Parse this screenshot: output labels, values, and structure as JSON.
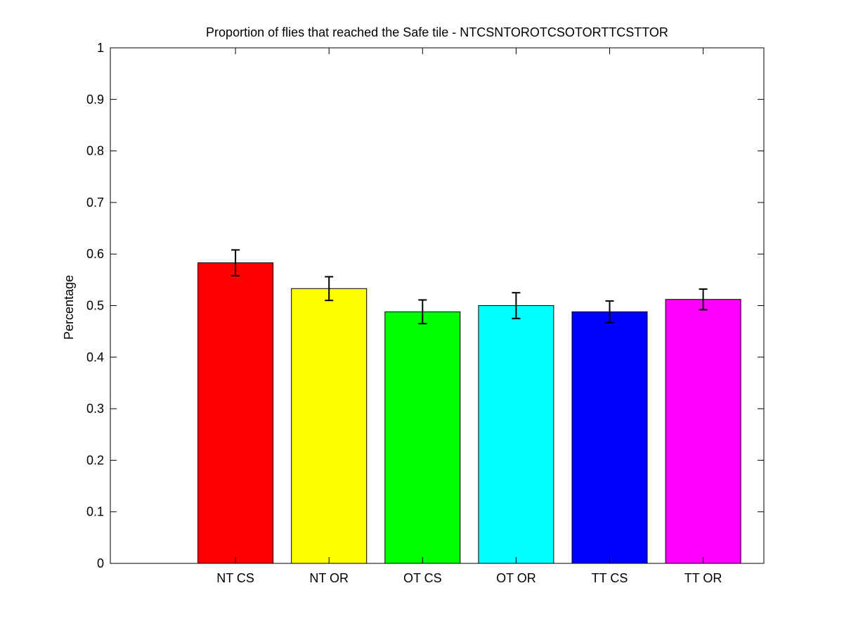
{
  "chart_data": {
    "type": "bar",
    "title": "Proportion of flies that reached the Safe tile - NTCSNTOROTCSOTORTTCSTTOR",
    "xlabel": "",
    "ylabel": "Percentage",
    "ylim": [
      0,
      1
    ],
    "yticks": [
      "0",
      "0.1",
      "0.2",
      "0.3",
      "0.4",
      "0.5",
      "0.6",
      "0.7",
      "0.8",
      "0.9",
      "1"
    ],
    "categories": [
      "NT CS",
      "NT OR",
      "OT CS",
      "OT OR",
      "TT CS",
      "TT OR"
    ],
    "values": [
      0.583,
      0.533,
      0.488,
      0.5,
      0.488,
      0.512
    ],
    "errors": [
      0.025,
      0.023,
      0.023,
      0.025,
      0.021,
      0.02
    ],
    "colors": [
      "#ff0000",
      "#ffff00",
      "#00ff00",
      "#00ffff",
      "#0000ff",
      "#ff00ff"
    ],
    "grid": false,
    "legend": "none"
  }
}
